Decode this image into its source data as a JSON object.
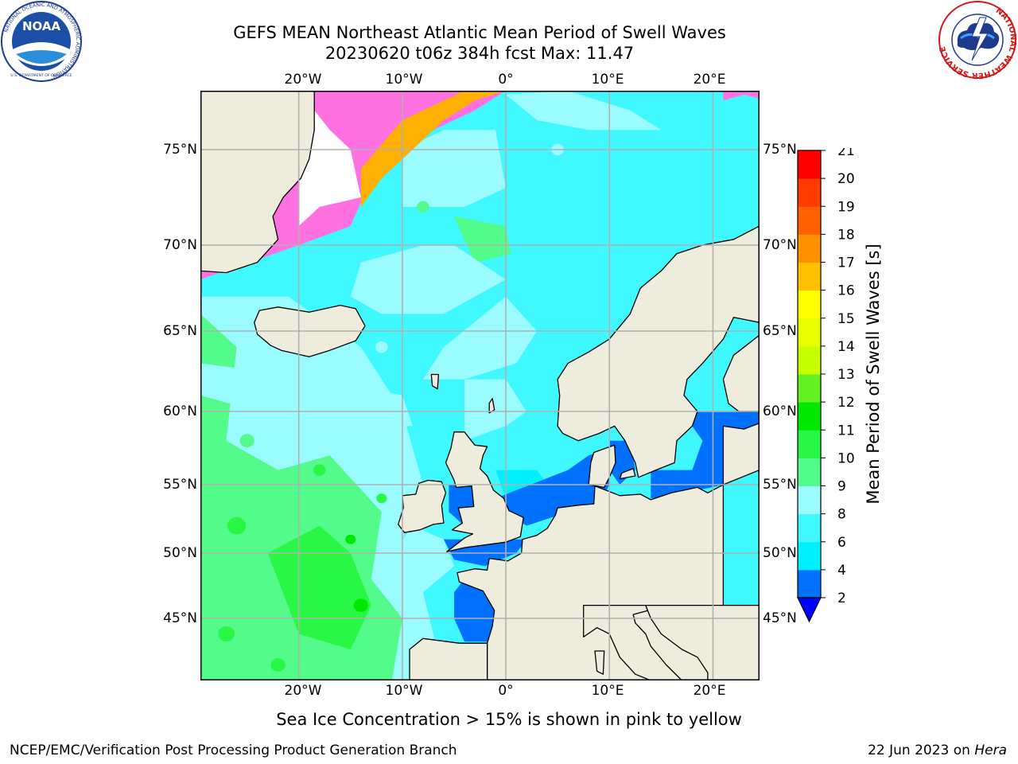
{
  "header": {
    "title_line1": "GEFS MEAN Northeast Atlantic Mean Period of Swell Waves",
    "title_line2": "20230620 t06z 384h fcst   Max: 11.47"
  },
  "logos": {
    "noaa": {
      "text": "NOAA",
      "ring_text": "NATIONAL OCEANIC AND ATMOSPHERIC ADMINISTRATION",
      "bottom_text": "U.S. DEPARTMENT OF COMMERCE"
    },
    "nws": {
      "ring_text": "NATIONAL WEATHER SERVICE"
    }
  },
  "map": {
    "lon_ticks": [
      "20°W",
      "10°W",
      "0°",
      "10°E",
      "20°E"
    ],
    "lat_ticks_left": [
      "75°N",
      "70°N",
      "65°N",
      "60°N",
      "55°N",
      "50°N",
      "45°N"
    ],
    "lat_ticks_right": [
      "75°N",
      "70°N",
      "65°N",
      "60°N",
      "55°N",
      "50°N",
      "45°N"
    ],
    "colors": {
      "land": "#eeecdc",
      "gridline": "#b0b0b0",
      "coast": "#000000"
    },
    "extent": {
      "lon_min": -29.5,
      "lon_max": 24.5,
      "lat_min": 41,
      "lat_max": 78
    }
  },
  "colorbar": {
    "label": "Mean Period of Swell Waves [s]",
    "tick_labels": [
      "2",
      "4",
      "6",
      "8",
      "9",
      "10",
      "11",
      "12",
      "13",
      "14",
      "15",
      "16",
      "17",
      "18",
      "19",
      "20",
      "21"
    ],
    "bins": [
      {
        "lo": 2,
        "hi": 4,
        "color": "#0070ff"
      },
      {
        "lo": 4,
        "hi": 6,
        "color": "#00f0ff"
      },
      {
        "lo": 6,
        "hi": 8,
        "color": "#40f8ff"
      },
      {
        "lo": 8,
        "hi": 9,
        "color": "#9afcff"
      },
      {
        "lo": 9,
        "hi": 10,
        "color": "#52fb8a"
      },
      {
        "lo": 10,
        "hi": 11,
        "color": "#28f845"
      },
      {
        "lo": 11,
        "hi": 12,
        "color": "#00e800"
      },
      {
        "lo": 12,
        "hi": 13,
        "color": "#62f020"
      },
      {
        "lo": 13,
        "hi": 14,
        "color": "#c8ff00"
      },
      {
        "lo": 14,
        "hi": 15,
        "color": "#e8ff00"
      },
      {
        "lo": 15,
        "hi": 16,
        "color": "#ffff00"
      },
      {
        "lo": 16,
        "hi": 17,
        "color": "#ffc000"
      },
      {
        "lo": 17,
        "hi": 18,
        "color": "#ff9000"
      },
      {
        "lo": 18,
        "hi": 19,
        "color": "#ff6000"
      },
      {
        "lo": 19,
        "hi": 20,
        "color": "#ff3c00"
      },
      {
        "lo": 20,
        "hi": 21,
        "color": "#ff0000"
      }
    ],
    "under_color": "#0000ff"
  },
  "footer": {
    "note": "Sea Ice Concentration > 15% is shown in pink to yellow",
    "credit": "NCEP/EMC/Verification Post Processing Product Generation Branch",
    "date": "22 Jun 2023 on ",
    "host": "Hera"
  }
}
